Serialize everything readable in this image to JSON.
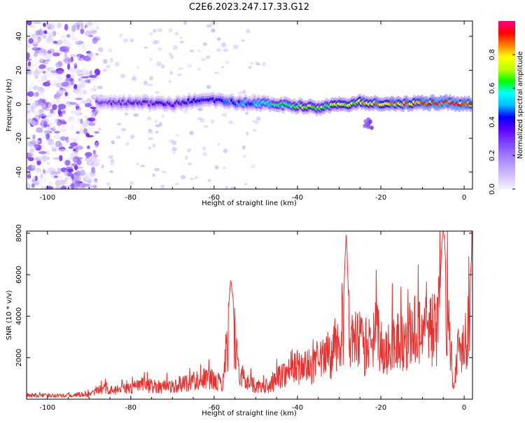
{
  "figure_title": "C2E6.2023.247.17.33.G12",
  "colors": {
    "snr_line": "#e8312e",
    "axis": "#000000",
    "colormap": [
      "#f4f4ff",
      "#d8c6ff",
      "#b89cff",
      "#9a70ff",
      "#7a3cff",
      "#5a00ff",
      "#0000ff",
      "#00c0ff",
      "#00ffff",
      "#00ff00",
      "#c0ff00",
      "#ffff00",
      "#ff8000",
      "#ff0000",
      "#ff0080"
    ]
  },
  "chart_data": [
    {
      "type": "heatmap",
      "title": "",
      "xlabel": "Height of straight line (km)",
      "ylabel": "Frequency (Hz)",
      "xlim": [
        -105,
        2
      ],
      "ylim": [
        -50,
        49
      ],
      "xticks": [
        -100,
        -80,
        -60,
        -40,
        -20,
        0
      ],
      "yticks": [
        -40,
        -20,
        0,
        20,
        40
      ],
      "colorbar": {
        "label": "Normalized spectral amplitude",
        "range": [
          0,
          1
        ],
        "ticks": [
          "0.0",
          "0.2",
          "0.4",
          "0.6",
          "0.8"
        ]
      },
      "description_trend": "Signal band near 0 Hz from about -88 km to 0 km; scattered noise below -88 km",
      "band_center_hz": [
        {
          "x": -88,
          "y": 1
        },
        {
          "x": -80,
          "y": 1
        },
        {
          "x": -70,
          "y": 0
        },
        {
          "x": -62,
          "y": 3
        },
        {
          "x": -55,
          "y": 1
        },
        {
          "x": -45,
          "y": 0
        },
        {
          "x": -35,
          "y": -2
        },
        {
          "x": -25,
          "y": 1
        },
        {
          "x": -15,
          "y": 0
        },
        {
          "x": -5,
          "y": 1
        },
        {
          "x": 2,
          "y": 0
        }
      ],
      "band_peak_amplitude": [
        {
          "x": -88,
          "y": 0.3
        },
        {
          "x": -80,
          "y": 0.35
        },
        {
          "x": -70,
          "y": 0.4
        },
        {
          "x": -60,
          "y": 0.45
        },
        {
          "x": -50,
          "y": 0.55
        },
        {
          "x": -40,
          "y": 0.7
        },
        {
          "x": -30,
          "y": 0.75
        },
        {
          "x": -20,
          "y": 0.85
        },
        {
          "x": -10,
          "y": 0.9
        },
        {
          "x": -3,
          "y": 1.0
        },
        {
          "x": 2,
          "y": 0.9
        }
      ],
      "noise_region_x": [
        -105,
        -88
      ],
      "secondary_blob": {
        "x": -23,
        "y": -14,
        "amplitude": 0.2
      }
    },
    {
      "type": "line",
      "title": "",
      "xlabel": "Height of straight line (km)",
      "ylabel": "SNR (10 * v/v)",
      "xlim": [
        -105,
        2
      ],
      "ylim": [
        0,
        8100
      ],
      "xticks": [
        -100,
        -80,
        -60,
        -40,
        -20,
        0
      ],
      "yticks": [
        2000,
        4000,
        6000,
        8000
      ],
      "envelope": [
        {
          "x": -105,
          "y": 250
        },
        {
          "x": -100,
          "y": 230
        },
        {
          "x": -95,
          "y": 250
        },
        {
          "x": -90,
          "y": 300
        },
        {
          "x": -88,
          "y": 500
        },
        {
          "x": -86,
          "y": 700
        },
        {
          "x": -84,
          "y": 500
        },
        {
          "x": -80,
          "y": 700
        },
        {
          "x": -78,
          "y": 900
        },
        {
          "x": -74,
          "y": 800
        },
        {
          "x": -70,
          "y": 800
        },
        {
          "x": -66,
          "y": 1100
        },
        {
          "x": -62,
          "y": 1300
        },
        {
          "x": -58,
          "y": 1000
        },
        {
          "x": -56.5,
          "y": 4200
        },
        {
          "x": -55.5,
          "y": 4800
        },
        {
          "x": -54,
          "y": 1500
        },
        {
          "x": -50,
          "y": 800
        },
        {
          "x": -47,
          "y": 700
        },
        {
          "x": -44,
          "y": 1500
        },
        {
          "x": -40,
          "y": 2000
        },
        {
          "x": -36,
          "y": 2000
        },
        {
          "x": -32,
          "y": 2800
        },
        {
          "x": -30,
          "y": 3200
        },
        {
          "x": -28.5,
          "y": 5500
        },
        {
          "x": -27,
          "y": 3500
        },
        {
          "x": -25,
          "y": 3600
        },
        {
          "x": -23,
          "y": 2500
        },
        {
          "x": -21,
          "y": 4200
        },
        {
          "x": -19,
          "y": 2500
        },
        {
          "x": -17,
          "y": 3800
        },
        {
          "x": -15,
          "y": 3600
        },
        {
          "x": -12,
          "y": 4200
        },
        {
          "x": -9,
          "y": 4600
        },
        {
          "x": -6.5,
          "y": 4200
        },
        {
          "x": -5,
          "y": 7800
        },
        {
          "x": -4,
          "y": 5200
        },
        {
          "x": -3,
          "y": 2500
        },
        {
          "x": -2.5,
          "y": 700
        },
        {
          "x": -1.5,
          "y": 3000
        },
        {
          "x": 0,
          "y": 3700
        },
        {
          "x": 1,
          "y": 4500
        },
        {
          "x": 2,
          "y": 6800
        }
      ],
      "peaks": [
        {
          "x": -56,
          "y": 5800
        },
        {
          "x": -28.3,
          "y": 8000
        },
        {
          "x": -5,
          "y": 8100
        },
        {
          "x": 2,
          "y": 7100
        }
      ]
    }
  ]
}
